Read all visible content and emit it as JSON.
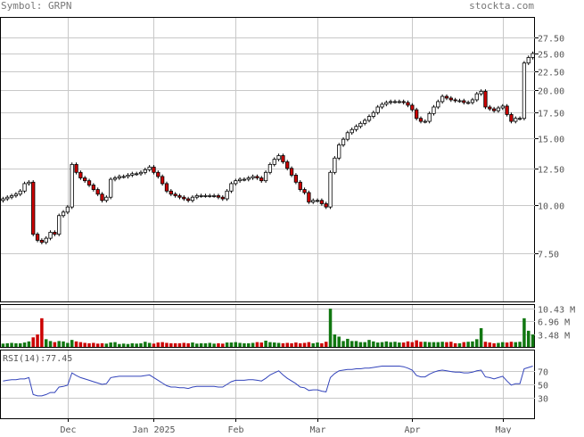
{
  "header": {
    "symbol_text": "Symbol: GRPN",
    "site": "stockta.com"
  },
  "colors": {
    "up": "#ffffff",
    "down": "#cc0000",
    "vol_up": "#117711",
    "vol_down": "#cc0000",
    "grid": "#c8c8c8",
    "frame": "#000000",
    "rsi_line": "#3344bb"
  },
  "chart_data": [
    {
      "type": "candlestick",
      "title": "",
      "y_scale": "log",
      "y_ticks": [
        "27.50",
        "25.00",
        "22.50",
        "20.00",
        "17.50",
        "15.00",
        "12.50",
        "10.00",
        "7.50"
      ],
      "ylim": [
        5.6,
        31.0
      ],
      "x_tick_labels": [
        "Dec",
        "Jan 2025",
        "Feb",
        "Mar",
        "Apr",
        "May"
      ],
      "x_tick_index": [
        15,
        35,
        54,
        73,
        95,
        116
      ],
      "closes": [
        10.4,
        10.5,
        10.6,
        10.7,
        10.9,
        11.4,
        11.5,
        8.4,
        8.1,
        8.0,
        8.2,
        8.5,
        8.4,
        9.4,
        9.6,
        9.9,
        12.8,
        12.2,
        11.8,
        11.6,
        11.3,
        11.0,
        10.7,
        10.3,
        10.5,
        11.7,
        11.8,
        11.9,
        11.9,
        12.0,
        12.1,
        12.1,
        12.2,
        12.4,
        12.6,
        12.2,
        11.9,
        11.4,
        10.9,
        10.7,
        10.6,
        10.5,
        10.4,
        10.3,
        10.5,
        10.6,
        10.6,
        10.6,
        10.6,
        10.6,
        10.5,
        10.4,
        10.9,
        11.4,
        11.6,
        11.7,
        11.7,
        11.8,
        11.9,
        11.8,
        11.6,
        12.2,
        12.8,
        13.2,
        13.5,
        13.0,
        12.5,
        12.0,
        11.5,
        11.0,
        10.8,
        10.2,
        10.3,
        10.3,
        10.1,
        9.9,
        12.2,
        13.3,
        14.4,
        14.9,
        15.5,
        15.8,
        16.1,
        16.4,
        16.7,
        17.1,
        17.5,
        18.1,
        18.4,
        18.6,
        18.7,
        18.7,
        18.7,
        18.6,
        18.3,
        17.8,
        16.9,
        16.6,
        16.6,
        17.4,
        18.1,
        18.7,
        19.3,
        19.1,
        18.9,
        18.8,
        18.8,
        18.6,
        18.6,
        18.9,
        19.6,
        19.9,
        18.1,
        17.9,
        17.7,
        18.0,
        18.2,
        17.3,
        16.6,
        16.9,
        16.9,
        23.6,
        24.4,
        25.0
      ],
      "volume_ticks": [
        "10.43 M",
        "6.96 M",
        "3.48 M"
      ],
      "volume_max_m": 10.43,
      "volumes_m": [
        0.9,
        1.0,
        1.1,
        1.0,
        1.0,
        1.2,
        1.5,
        2.6,
        3.4,
        7.8,
        2.1,
        1.6,
        1.3,
        1.6,
        1.5,
        1.1,
        1.9,
        1.5,
        1.3,
        1.1,
        1.0,
        1.1,
        0.9,
        1.0,
        0.9,
        1.2,
        1.3,
        0.8,
        0.9,
        0.8,
        1.0,
        0.9,
        1.0,
        1.4,
        1.1,
        0.9,
        1.2,
        1.3,
        1.1,
        1.0,
        1.0,
        1.0,
        1.1,
        1.0,
        1.2,
        0.9,
        1.0,
        1.0,
        1.1,
        0.9,
        1.0,
        0.9,
        1.2,
        1.2,
        1.3,
        1.1,
        1.0,
        1.0,
        1.1,
        1.3,
        1.2,
        1.7,
        1.3,
        1.2,
        1.1,
        1.0,
        1.1,
        1.0,
        1.2,
        1.0,
        1.1,
        1.3,
        1.0,
        1.2,
        1.0,
        1.4,
        10.4,
        3.4,
        2.8,
        1.6,
        2.2,
        1.6,
        1.6,
        1.3,
        1.3,
        1.9,
        1.5,
        1.2,
        1.3,
        1.5,
        1.3,
        1.4,
        1.2,
        1.2,
        1.5,
        1.3,
        1.8,
        1.4,
        1.4,
        1.3,
        1.3,
        1.3,
        1.4,
        1.3,
        1.4,
        1.0,
        1.0,
        1.3,
        1.4,
        1.5,
        2.1,
        5.1,
        1.4,
        1.2,
        1.0,
        1.1,
        1.3,
        1.2,
        1.4,
        1.3,
        1.4,
        7.8,
        4.4,
        3.4
      ]
    },
    {
      "type": "line",
      "title": "RSI(14)",
      "value_label": "RSI(14):77.45",
      "ylim": [
        0,
        100
      ],
      "y_ticks": [
        "70",
        "50",
        "30"
      ],
      "values": [
        55,
        56,
        57,
        57,
        58,
        58,
        60,
        35,
        33,
        33,
        35,
        38,
        38,
        46,
        47,
        49,
        67,
        63,
        60,
        58,
        56,
        54,
        52,
        50,
        51,
        60,
        61,
        62,
        62,
        62,
        62,
        62,
        62,
        63,
        64,
        60,
        56,
        52,
        48,
        46,
        46,
        45,
        45,
        44,
        46,
        47,
        47,
        47,
        47,
        47,
        46,
        46,
        50,
        54,
        56,
        56,
        56,
        57,
        57,
        56,
        55,
        59,
        64,
        67,
        70,
        64,
        59,
        55,
        51,
        46,
        45,
        41,
        42,
        42,
        40,
        39,
        60,
        66,
        70,
        71,
        72,
        72,
        73,
        73,
        74,
        74,
        75,
        76,
        77,
        77,
        77,
        77,
        77,
        76,
        74,
        71,
        63,
        61,
        61,
        65,
        68,
        70,
        71,
        70,
        69,
        68,
        68,
        67,
        67,
        68,
        70,
        71,
        61,
        60,
        58,
        60,
        62,
        55,
        49,
        51,
        51,
        73,
        75,
        77
      ]
    }
  ]
}
